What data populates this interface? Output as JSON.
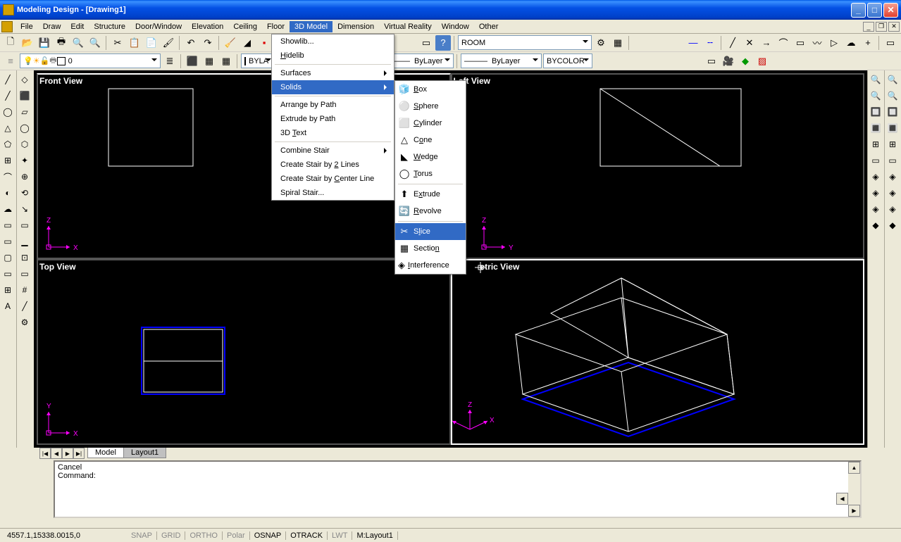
{
  "title": "Modeling Design - [Drawing1]",
  "menus": [
    "File",
    "Draw",
    "Edit",
    "Structure",
    "Door/Window",
    "Elevation",
    "Ceiling",
    "Floor",
    "3D Model",
    "Dimension",
    "Virtual Reality",
    "Window",
    "Other"
  ],
  "active_menu_index": 8,
  "toolbar2": {
    "bylat": "BYLA",
    "linetype": "ByLayer",
    "lineweight": "ByLayer",
    "colormode": "BYCOLOR",
    "layer0": "0",
    "room": "ROOM"
  },
  "viewports": {
    "front": "Front View",
    "left": "Left View",
    "top": "Top View",
    "iso": "etric View"
  },
  "dropdown1": {
    "showlib": "Showlib...",
    "hidelib": "Hidelib",
    "surfaces": "Surfaces",
    "solids": "Solids",
    "arrange": "Arrange by Path",
    "extrude": "Extrude by Path",
    "text3d": "3D Text",
    "combine": "Combine Stair",
    "stair2": "Create Stair by 2 Lines",
    "staircenter": "Create Stair by Center Line",
    "spiral": "Spiral Stair..."
  },
  "dropdown2": {
    "box": "Box",
    "sphere": "Sphere",
    "cylinder": "Cylinder",
    "cone": "Cone",
    "wedge": "Wedge",
    "torus": "Torus",
    "extrude": "Extrude",
    "revolve": "Revolve",
    "slice": "Slice",
    "section": "Section",
    "interference": "Interference"
  },
  "tabs": {
    "model": "Model",
    "layout1": "Layout1"
  },
  "command": {
    "line1": "Cancel",
    "line2": "Command:"
  },
  "status": {
    "coords": "4557.1,15338.0015,0",
    "snap": "SNAP",
    "grid": "GRID",
    "ortho": "ORTHO",
    "polar": "Polar",
    "osnap": "OSNAP",
    "otrack": "OTRACK",
    "lwt": "LWT",
    "mlayout": "M:Layout1"
  },
  "left_tools1": [
    "╱",
    "╱",
    "◯",
    "△",
    "⬠",
    "⊞",
    "⌒",
    "◐",
    "☁",
    "▭",
    "▭",
    "▢",
    "▭",
    "⊞",
    "A"
  ],
  "left_tools2": [
    "◇",
    "⬛",
    "▱",
    "◯",
    "⬡",
    "✦",
    "⊕",
    "⟲",
    "↘",
    "▭",
    "▁",
    "⊡",
    "▭",
    "#",
    "╱",
    "⚙"
  ],
  "right_tools1": [
    "🔍",
    "🔍",
    "🔲",
    "🔳",
    "⊞",
    "▭",
    "◈",
    "◈",
    "◈",
    "◆"
  ],
  "right_tools2": [
    "🔍",
    "🔍",
    "🔲",
    "🔳",
    "⊞",
    "▭",
    "◈",
    "◈",
    "◈",
    "◆"
  ]
}
